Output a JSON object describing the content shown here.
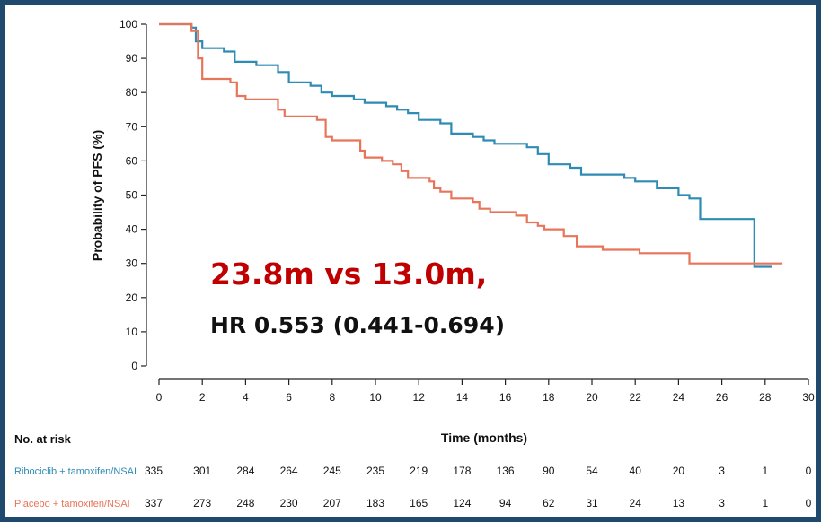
{
  "chart_data": {
    "type": "line",
    "title": "",
    "xlabel": "Time (months)",
    "ylabel": "Probability of PFS (%)",
    "xlim": [
      0,
      30
    ],
    "ylim": [
      0,
      100
    ],
    "x_ticks": [
      0,
      2,
      4,
      6,
      8,
      10,
      12,
      14,
      16,
      18,
      20,
      22,
      24,
      26,
      28,
      30
    ],
    "y_ticks": [
      0,
      10,
      20,
      30,
      40,
      50,
      60,
      70,
      80,
      90,
      100
    ],
    "grid": false,
    "legend": "none",
    "annotations": [
      "23.8m vs 13.0m,",
      "HR 0.553 (0.441-0.694)"
    ],
    "annotation_colors": [
      "#c00000",
      "#111111"
    ],
    "series": [
      {
        "name": "Ribociclib + tamoxifen/NSAI",
        "color": "#2e8bb4",
        "steps": [
          [
            0,
            100
          ],
          [
            1.2,
            100
          ],
          [
            1.5,
            99
          ],
          [
            1.7,
            95
          ],
          [
            2.0,
            93
          ],
          [
            3.0,
            92
          ],
          [
            3.5,
            89
          ],
          [
            4.5,
            88
          ],
          [
            5.5,
            86
          ],
          [
            6.0,
            83
          ],
          [
            7.0,
            82
          ],
          [
            7.5,
            80
          ],
          [
            8.0,
            79
          ],
          [
            9.0,
            78
          ],
          [
            9.5,
            77
          ],
          [
            10.5,
            76
          ],
          [
            11.0,
            75
          ],
          [
            11.5,
            74
          ],
          [
            12.0,
            72
          ],
          [
            13.0,
            71
          ],
          [
            13.5,
            68
          ],
          [
            14.5,
            67
          ],
          [
            15.0,
            66
          ],
          [
            15.5,
            65
          ],
          [
            17.0,
            64
          ],
          [
            17.5,
            62
          ],
          [
            18.0,
            59
          ],
          [
            19.0,
            58
          ],
          [
            19.5,
            56
          ],
          [
            21.5,
            55
          ],
          [
            22.0,
            54
          ],
          [
            23.0,
            52
          ],
          [
            24.0,
            50
          ],
          [
            24.5,
            49
          ],
          [
            25.0,
            43
          ],
          [
            27.5,
            29
          ],
          [
            28.3,
            29
          ]
        ]
      },
      {
        "name": "Placebo + tamoxifen/NSAI",
        "color": "#e8745a",
        "steps": [
          [
            0,
            100
          ],
          [
            1.2,
            100
          ],
          [
            1.5,
            98
          ],
          [
            1.8,
            90
          ],
          [
            2.0,
            84
          ],
          [
            3.3,
            83
          ],
          [
            3.6,
            79
          ],
          [
            4.0,
            78
          ],
          [
            5.5,
            75
          ],
          [
            5.8,
            73
          ],
          [
            7.3,
            72
          ],
          [
            7.7,
            67
          ],
          [
            8.0,
            66
          ],
          [
            9.3,
            63
          ],
          [
            9.5,
            61
          ],
          [
            10.3,
            60
          ],
          [
            10.8,
            59
          ],
          [
            11.2,
            57
          ],
          [
            11.5,
            55
          ],
          [
            12.5,
            54
          ],
          [
            12.7,
            52
          ],
          [
            13.0,
            51
          ],
          [
            13.5,
            49
          ],
          [
            14.5,
            48
          ],
          [
            14.8,
            46
          ],
          [
            15.3,
            45
          ],
          [
            16.5,
            44
          ],
          [
            17.0,
            42
          ],
          [
            17.5,
            41
          ],
          [
            17.8,
            40
          ],
          [
            18.7,
            38
          ],
          [
            19.3,
            35
          ],
          [
            20.5,
            34
          ],
          [
            22.2,
            33
          ],
          [
            24.5,
            30
          ],
          [
            28.5,
            30
          ],
          [
            28.8,
            30
          ]
        ]
      }
    ]
  },
  "risk_table": {
    "title": "No. at risk",
    "time_points": [
      0,
      2,
      4,
      6,
      8,
      10,
      12,
      14,
      16,
      18,
      20,
      22,
      24,
      26,
      28,
      30
    ],
    "rows": [
      {
        "label": "Ribociclib + tamoxifen/NSAI",
        "color": "#2e8bb4",
        "values": [
          "335",
          "301",
          "284",
          "264",
          "245",
          "235",
          "219",
          "178",
          "136",
          "90",
          "54",
          "40",
          "20",
          "3",
          "1",
          "0"
        ]
      },
      {
        "label": "Placebo + tamoxifen/NSAI",
        "color": "#e8745a",
        "values": [
          "337",
          "273",
          "248",
          "230",
          "207",
          "183",
          "165",
          "124",
          "94",
          "62",
          "31",
          "24",
          "13",
          "3",
          "1",
          "0"
        ]
      }
    ]
  }
}
